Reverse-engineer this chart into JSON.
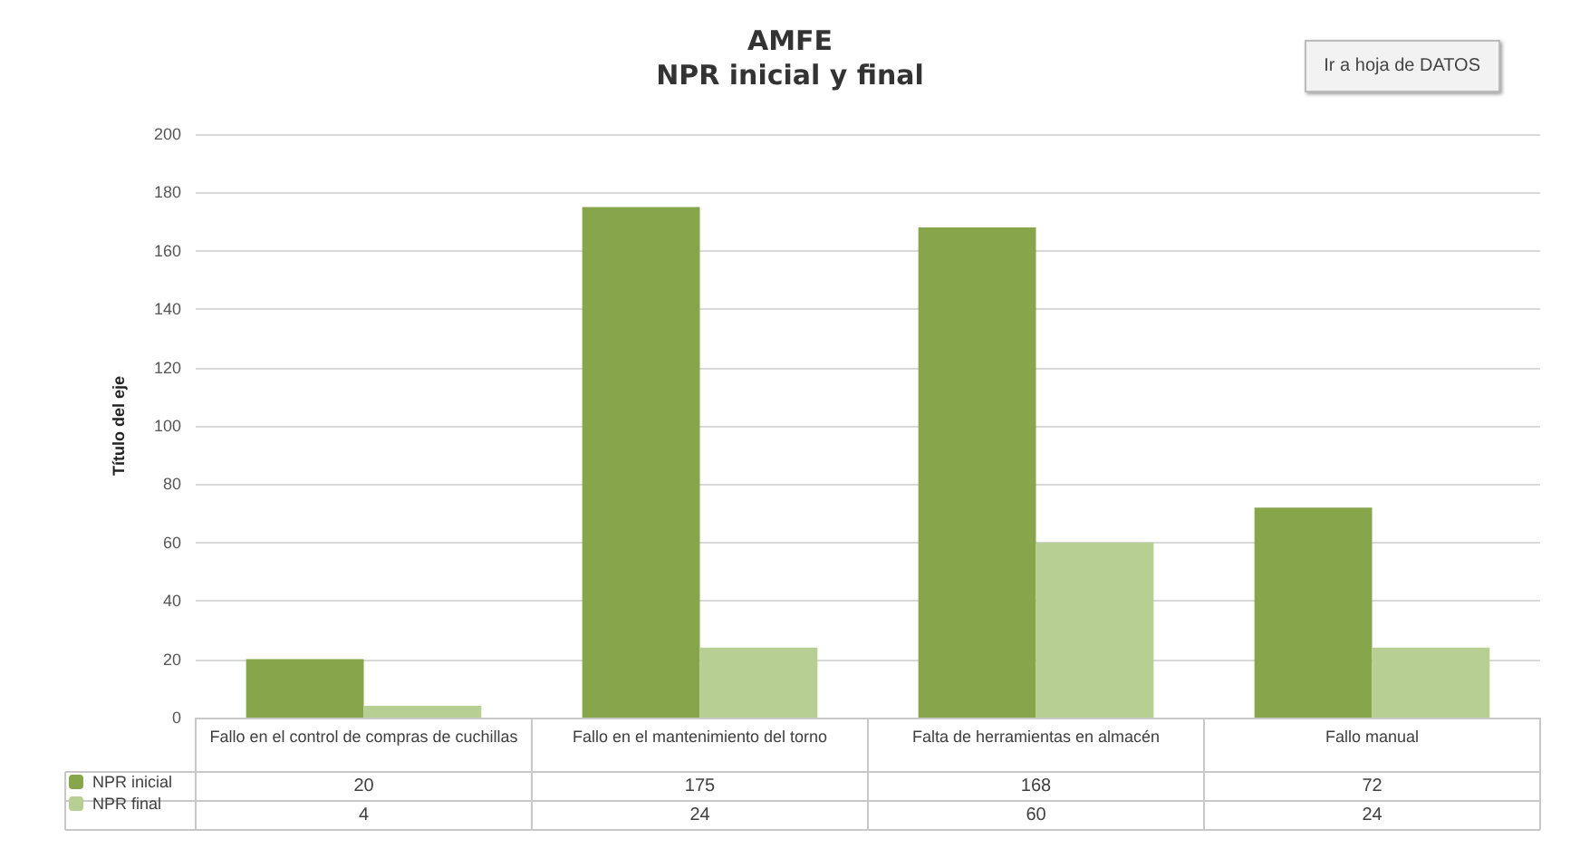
{
  "chart_data": {
    "type": "bar",
    "title": "AMFE",
    "subtitle": "NPR inicial y final",
    "ylabel": "Título del eje",
    "categories": [
      "Fallo en el control de compras de cuchillas",
      "Fallo en el mantenimiento del torno",
      "Falta de herramientas en almacén",
      "Fallo manual"
    ],
    "series": [
      {
        "name": "NPR inicial",
        "color": "#87a64b",
        "values": [
          20,
          175,
          168,
          72
        ]
      },
      {
        "name": "NPR final",
        "color": "#b8cf93",
        "values": [
          4,
          24,
          60,
          24
        ]
      }
    ],
    "ylim": [
      0,
      200
    ],
    "yticks": [
      0,
      20,
      40,
      60,
      80,
      100,
      120,
      140,
      160,
      180,
      200
    ],
    "grid": "y",
    "legend": "bottom left",
    "data_labels": true,
    "annotations": [
      "Ir a hoja de DATOS"
    ]
  }
}
